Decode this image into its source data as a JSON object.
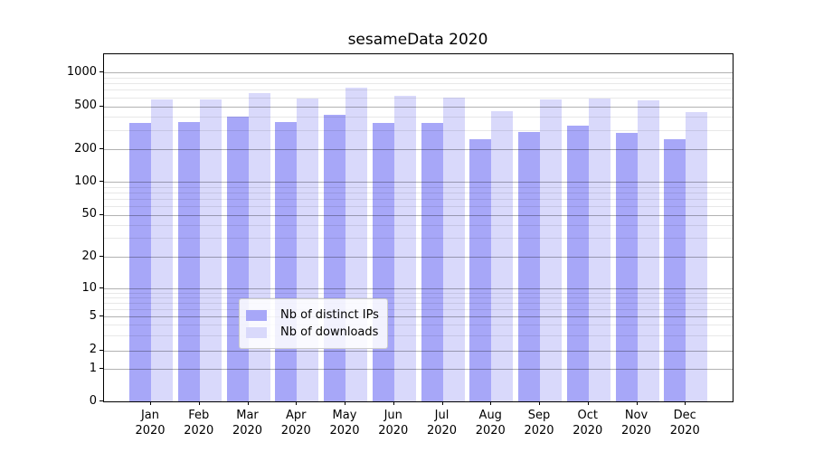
{
  "title": "sesameData 2020",
  "colors": {
    "ips_bar": "#a7a7f8",
    "downloads_bar": "#d9d9fb",
    "grid_major": "rgba(0,0,0,0.30)",
    "grid_minor": "rgba(0,0,0,0.09)",
    "axis": "#000000",
    "legend_border": "#cccccc"
  },
  "legend": {
    "items": [
      {
        "label": "Nb of distinct IPs",
        "series": "ips"
      },
      {
        "label": "Nb of downloads",
        "series": "downloads"
      }
    ]
  },
  "y_axis": {
    "tick_values": [
      1000,
      500,
      200,
      100,
      50,
      20,
      10,
      5,
      2,
      1,
      0
    ],
    "minor_values": [
      3,
      4,
      6,
      7,
      8,
      9,
      30,
      40,
      60,
      70,
      80,
      90,
      300,
      400,
      600,
      700,
      800,
      900
    ]
  },
  "chart_data": {
    "type": "bar",
    "title": "sesameData 2020",
    "categories": [
      "Jan 2020",
      "Feb 2020",
      "Mar 2020",
      "Apr 2020",
      "May 2020",
      "Jun 2020",
      "Jul 2020",
      "Aug 2020",
      "Sep 2020",
      "Oct 2020",
      "Nov 2020",
      "Dec 2020"
    ],
    "series": [
      {
        "name": "Nb of distinct IPs",
        "color": "#a7a7f8",
        "values": [
          350,
          355,
          405,
          355,
          420,
          350,
          350,
          250,
          290,
          330,
          285,
          250
        ]
      },
      {
        "name": "Nb of downloads",
        "color": "#d9d9fb",
        "values": [
          575,
          575,
          650,
          590,
          735,
          615,
          595,
          450,
          570,
          585,
          565,
          440
        ]
      }
    ],
    "yscale": "symlog",
    "yticks": [
      0,
      1,
      2,
      5,
      10,
      20,
      50,
      100,
      200,
      500,
      1000
    ],
    "ylim": [
      0,
      1400
    ],
    "grid": "both",
    "legend_position": "lower center"
  }
}
